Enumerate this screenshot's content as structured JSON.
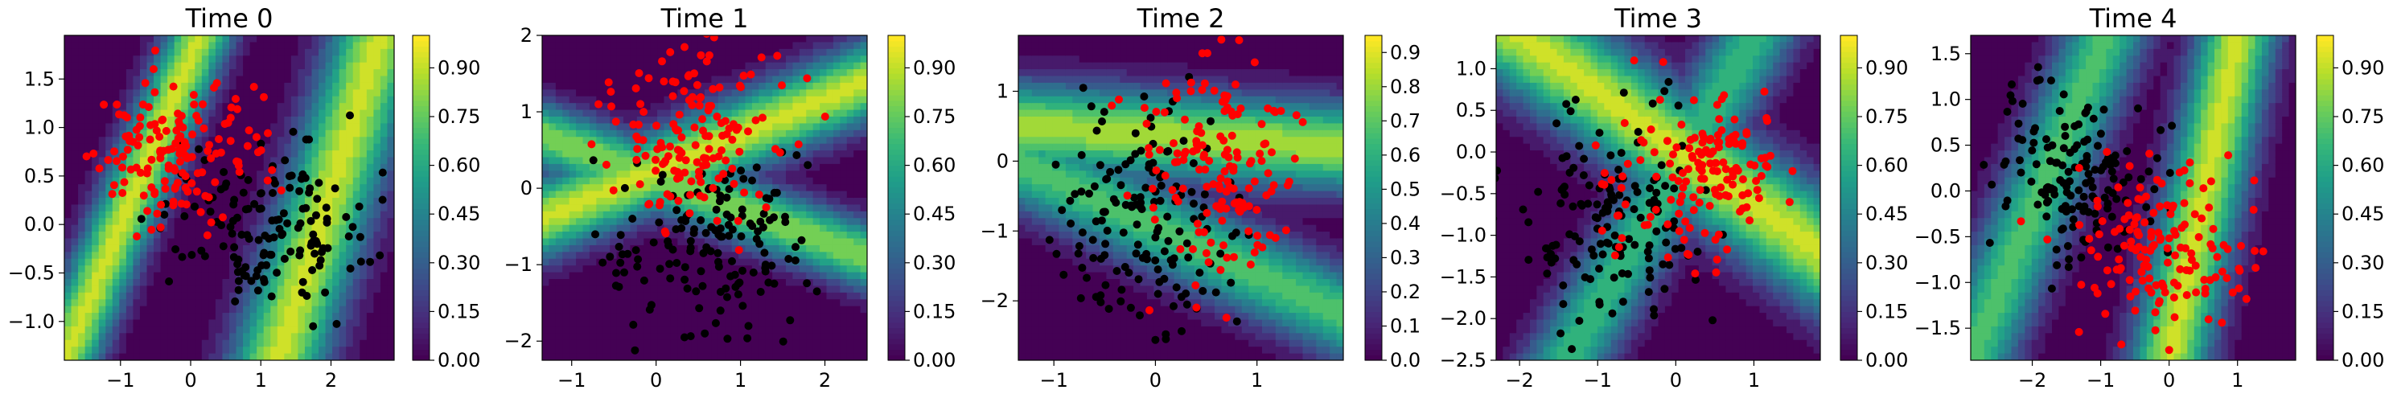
{
  "figure": {
    "colormap": [
      "#440154",
      "#482878",
      "#3e4a89",
      "#31688e",
      "#26828e",
      "#1f9e89",
      "#35b779",
      "#6ece58",
      "#b5de2b",
      "#fde725"
    ],
    "point_colors": {
      "class_a": "#000000",
      "class_b": "#ff0000"
    }
  },
  "chart_data": [
    {
      "type": "scatter",
      "title": "Time 0",
      "xlim": [
        -1.8,
        2.9
      ],
      "ylim": [
        -1.4,
        1.95
      ],
      "xticks": [
        {
          "v": -1,
          "label": "−1"
        },
        {
          "v": 0,
          "label": "0"
        },
        {
          "v": 1,
          "label": "1"
        },
        {
          "v": 2,
          "label": "2"
        }
      ],
      "yticks": [
        {
          "v": -1.0,
          "label": "−1.0"
        },
        {
          "v": -0.5,
          "label": "−0.5"
        },
        {
          "v": 0.0,
          "label": "0.0"
        },
        {
          "v": 0.5,
          "label": "0.5"
        },
        {
          "v": 1.0,
          "label": "1.0"
        },
        {
          "v": 1.5,
          "label": "1.5"
        }
      ],
      "colorbar": {
        "min": 0.0,
        "max": 1.0,
        "ticks": [
          {
            "v": 0.0,
            "label": "0.00"
          },
          {
            "v": 0.15,
            "label": "0.15"
          },
          {
            "v": 0.3,
            "label": "0.30"
          },
          {
            "v": 0.45,
            "label": "0.45"
          },
          {
            "v": 0.6,
            "label": "0.60"
          },
          {
            "v": 0.75,
            "label": "0.75"
          },
          {
            "v": 0.9,
            "label": "0.90"
          }
        ]
      },
      "bands": [
        {
          "x0": 1.2,
          "y0": -1.5,
          "x1": 2.7,
          "y1": 1.95,
          "width": 0.45,
          "peak": 0.95
        },
        {
          "x0": -1.8,
          "y0": -1.4,
          "x1": -0.3,
          "y1": 1.2,
          "width": 0.3,
          "peak": 0.95
        }
      ],
      "series": [
        {
          "name": "",
          "color_key": "class_a",
          "cx": 1.0,
          "cy": 0.0,
          "sx": 0.75,
          "sy": 0.42,
          "n": 150,
          "x": [],
          "y": []
        },
        {
          "name": "",
          "color_key": "class_b",
          "cx": -0.2,
          "cy": 0.7,
          "sx": 0.6,
          "sy": 0.38,
          "n": 150,
          "x": [],
          "y": []
        }
      ]
    },
    {
      "type": "scatter",
      "title": "Time 1",
      "xlim": [
        -1.35,
        2.5
      ],
      "ylim": [
        -2.25,
        2.0
      ],
      "xticks": [
        {
          "v": -1,
          "label": "−1"
        },
        {
          "v": 0,
          "label": "0"
        },
        {
          "v": 1,
          "label": "1"
        },
        {
          "v": 2,
          "label": "2"
        }
      ],
      "yticks": [
        {
          "v": -2,
          "label": "−2"
        },
        {
          "v": -1,
          "label": "−1"
        },
        {
          "v": 0,
          "label": "0"
        },
        {
          "v": 1,
          "label": "1"
        },
        {
          "v": 2,
          "label": "2"
        }
      ],
      "colorbar": {
        "min": 0.0,
        "max": 1.0,
        "ticks": [
          {
            "v": 0.0,
            "label": "0.00"
          },
          {
            "v": 0.15,
            "label": "0.15"
          },
          {
            "v": 0.3,
            "label": "0.30"
          },
          {
            "v": 0.45,
            "label": "0.45"
          },
          {
            "v": 0.6,
            "label": "0.60"
          },
          {
            "v": 0.75,
            "label": "0.75"
          },
          {
            "v": 0.9,
            "label": "0.90"
          }
        ]
      },
      "bands": [
        {
          "x0": -1.35,
          "y0": -0.4,
          "x1": 2.5,
          "y1": 1.4,
          "width": 0.35,
          "peak": 0.95
        },
        {
          "x0": -0.4,
          "y0": 0.3,
          "x1": 2.5,
          "y1": -0.9,
          "width": 0.3,
          "peak": 0.85
        }
      ],
      "series": [
        {
          "name": "",
          "color_key": "class_a",
          "cx": 0.6,
          "cy": -0.7,
          "sx": 0.6,
          "sy": 0.55,
          "n": 150,
          "x": [],
          "y": []
        },
        {
          "name": "",
          "color_key": "class_b",
          "cx": 0.4,
          "cy": 0.65,
          "sx": 0.55,
          "sy": 0.55,
          "n": 150,
          "x": [],
          "y": []
        }
      ]
    },
    {
      "type": "scatter",
      "title": "Time 2",
      "xlim": [
        -1.35,
        1.85
      ],
      "ylim": [
        -2.85,
        1.8
      ],
      "xticks": [
        {
          "v": -1,
          "label": "−1"
        },
        {
          "v": 0,
          "label": "0"
        },
        {
          "v": 1,
          "label": "1"
        }
      ],
      "yticks": [
        {
          "v": -2,
          "label": "−2"
        },
        {
          "v": -1,
          "label": "−1"
        },
        {
          "v": 0,
          "label": "0"
        },
        {
          "v": 1,
          "label": "1"
        }
      ],
      "colorbar": {
        "min": 0.0,
        "max": 0.95,
        "ticks": [
          {
            "v": 0.0,
            "label": "0.0"
          },
          {
            "v": 0.1,
            "label": "0.1"
          },
          {
            "v": 0.2,
            "label": "0.2"
          },
          {
            "v": 0.3,
            "label": "0.3"
          },
          {
            "v": 0.4,
            "label": "0.4"
          },
          {
            "v": 0.5,
            "label": "0.5"
          },
          {
            "v": 0.6,
            "label": "0.6"
          },
          {
            "v": 0.7,
            "label": "0.7"
          },
          {
            "v": 0.8,
            "label": "0.8"
          },
          {
            "v": 0.9,
            "label": "0.9"
          }
        ]
      },
      "bands": [
        {
          "x0": -1.35,
          "y0": 0.5,
          "x1": 1.85,
          "y1": 0.2,
          "width": 0.45,
          "peak": 0.9
        },
        {
          "x0": -0.5,
          "y0": -0.6,
          "x1": 1.85,
          "y1": -2.2,
          "width": 0.4,
          "peak": 0.75
        }
      ],
      "series": [
        {
          "name": "",
          "color_key": "class_a",
          "cx": -0.1,
          "cy": -0.9,
          "sx": 0.45,
          "sy": 0.75,
          "n": 150,
          "x": [],
          "y": []
        },
        {
          "name": "",
          "color_key": "class_b",
          "cx": 0.6,
          "cy": -0.1,
          "sx": 0.42,
          "sy": 0.85,
          "n": 150,
          "x": [],
          "y": []
        }
      ]
    },
    {
      "type": "scatter",
      "title": "Time 3",
      "xlim": [
        -2.3,
        1.85
      ],
      "ylim": [
        -2.5,
        1.4
      ],
      "xticks": [
        {
          "v": -2,
          "label": "−2"
        },
        {
          "v": -1,
          "label": "−1"
        },
        {
          "v": 0,
          "label": "0"
        },
        {
          "v": 1,
          "label": "1"
        }
      ],
      "yticks": [
        {
          "v": -2.5,
          "label": "−2.5"
        },
        {
          "v": -2.0,
          "label": "−2.0"
        },
        {
          "v": -1.5,
          "label": "−1.5"
        },
        {
          "v": -1.0,
          "label": "−1.0"
        },
        {
          "v": -0.5,
          "label": "−0.5"
        },
        {
          "v": 0.0,
          "label": "0.0"
        },
        {
          "v": 0.5,
          "label": "0.5"
        },
        {
          "v": 1.0,
          "label": "1.0"
        }
      ],
      "colorbar": {
        "min": 0.0,
        "max": 1.0,
        "ticks": [
          {
            "v": 0.0,
            "label": "0.00"
          },
          {
            "v": 0.15,
            "label": "0.15"
          },
          {
            "v": 0.3,
            "label": "0.30"
          },
          {
            "v": 0.45,
            "label": "0.45"
          },
          {
            "v": 0.6,
            "label": "0.60"
          },
          {
            "v": 0.75,
            "label": "0.75"
          },
          {
            "v": 0.9,
            "label": "0.90"
          }
        ]
      },
      "bands": [
        {
          "x0": -2.0,
          "y0": 1.4,
          "x1": 1.85,
          "y1": -1.2,
          "width": 0.45,
          "peak": 0.95
        },
        {
          "x0": -1.4,
          "y0": -2.5,
          "x1": 0.4,
          "y1": 0.4,
          "width": 0.35,
          "peak": 0.7
        }
      ],
      "series": [
        {
          "name": "",
          "color_key": "class_a",
          "cx": -0.8,
          "cy": -0.8,
          "sx": 0.6,
          "sy": 0.6,
          "n": 150,
          "x": [],
          "y": []
        },
        {
          "name": "",
          "color_key": "class_b",
          "cx": 0.3,
          "cy": -0.3,
          "sx": 0.55,
          "sy": 0.55,
          "n": 150,
          "x": [],
          "y": []
        }
      ]
    },
    {
      "type": "scatter",
      "title": "Time 4",
      "xlim": [
        -2.9,
        1.85
      ],
      "ylim": [
        -1.85,
        1.7
      ],
      "xticks": [
        {
          "v": -2,
          "label": "−2"
        },
        {
          "v": -1,
          "label": "−1"
        },
        {
          "v": 0,
          "label": "0"
        },
        {
          "v": 1,
          "label": "1"
        }
      ],
      "yticks": [
        {
          "v": -1.5,
          "label": "−1.5"
        },
        {
          "v": -1.0,
          "label": "−1.0"
        },
        {
          "v": -0.5,
          "label": "−0.5"
        },
        {
          "v": 0.0,
          "label": "0.0"
        },
        {
          "v": 0.5,
          "label": "0.5"
        },
        {
          "v": 1.0,
          "label": "1.0"
        },
        {
          "v": 1.5,
          "label": "1.5"
        }
      ],
      "colorbar": {
        "min": 0.0,
        "max": 1.0,
        "ticks": [
          {
            "v": 0.0,
            "label": "0.00"
          },
          {
            "v": 0.15,
            "label": "0.15"
          },
          {
            "v": 0.3,
            "label": "0.30"
          },
          {
            "v": 0.45,
            "label": "0.45"
          },
          {
            "v": 0.6,
            "label": "0.60"
          },
          {
            "v": 0.75,
            "label": "0.75"
          },
          {
            "v": 0.9,
            "label": "0.90"
          }
        ]
      },
      "bands": [
        {
          "x0": 0.0,
          "y0": -1.85,
          "x1": 1.0,
          "y1": 1.7,
          "width": 0.4,
          "peak": 0.95
        },
        {
          "x0": -2.9,
          "y0": -1.85,
          "x1": -1.2,
          "y1": 1.2,
          "width": 0.4,
          "peak": 0.75
        }
      ],
      "series": [
        {
          "name": "",
          "color_key": "class_a",
          "cx": -1.3,
          "cy": 0.2,
          "sx": 0.6,
          "sy": 0.45,
          "n": 150,
          "x": [],
          "y": []
        },
        {
          "name": "",
          "color_key": "class_b",
          "cx": -0.1,
          "cy": -0.6,
          "sx": 0.65,
          "sy": 0.45,
          "n": 150,
          "x": [],
          "y": []
        }
      ]
    }
  ]
}
